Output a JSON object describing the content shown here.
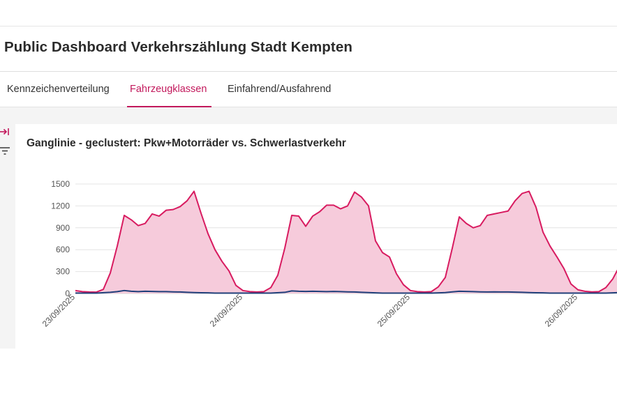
{
  "header": {
    "title": "Public Dashboard Verkehrszählung Stadt Kempten"
  },
  "tabs": [
    {
      "label": "Kennzeichenverteilung",
      "active": false
    },
    {
      "label": "Fahrzeugklassen",
      "active": true
    },
    {
      "label": "Einfahrend/Ausfahrend",
      "active": false
    }
  ],
  "sidebar": {
    "icons": [
      "collapse-sidebar-icon",
      "filter-icon"
    ]
  },
  "colors": {
    "accent": "#c2185b",
    "series_pkw": "#d81b60",
    "series_pkw_fill": "#f6cbdb",
    "series_lkw": "#1f3f7a"
  },
  "card": {
    "title": "Ganglinie - geclustert: Pkw+Motorräder vs. Schwerlastverkehr"
  },
  "chart_data": {
    "type": "area",
    "title": "Ganglinie - geclustert: Pkw+Motorräder vs. Schwerlastverkehr",
    "ylim": [
      0,
      1500
    ],
    "yticks": [
      "1500",
      "1200",
      "900",
      "600",
      "300",
      "0"
    ],
    "xticks": [
      "23/09/2025",
      "24/09/2025",
      "25/09/2025",
      "26/09/2025"
    ],
    "grid": true,
    "series": [
      {
        "values": [
          [
            0,
            40
          ],
          [
            1,
            25
          ],
          [
            2,
            20
          ],
          [
            3,
            18
          ],
          [
            4,
            55
          ],
          [
            5,
            280
          ],
          [
            6,
            650
          ],
          [
            7,
            1070
          ],
          [
            8,
            1010
          ],
          [
            9,
            930
          ],
          [
            10,
            960
          ],
          [
            11,
            1090
          ],
          [
            12,
            1060
          ],
          [
            13,
            1140
          ],
          [
            14,
            1150
          ],
          [
            15,
            1190
          ],
          [
            16,
            1270
          ],
          [
            17,
            1400
          ],
          [
            18,
            1100
          ],
          [
            19,
            820
          ],
          [
            20,
            600
          ],
          [
            21,
            440
          ],
          [
            22,
            310
          ],
          [
            23,
            110
          ],
          [
            24,
            40
          ],
          [
            25,
            25
          ],
          [
            26,
            20
          ],
          [
            27,
            25
          ],
          [
            28,
            80
          ],
          [
            28,
            80
          ],
          [
            29,
            250
          ],
          [
            30,
            620
          ],
          [
            31,
            1070
          ],
          [
            32,
            1060
          ],
          [
            33,
            920
          ],
          [
            34,
            1060
          ],
          [
            35,
            1120
          ],
          [
            36,
            1210
          ],
          [
            37,
            1210
          ],
          [
            38,
            1160
          ],
          [
            39,
            1200
          ],
          [
            40,
            1390
          ],
          [
            41,
            1320
          ],
          [
            42,
            1200
          ],
          [
            43,
            720
          ],
          [
            44,
            560
          ],
          [
            45,
            500
          ],
          [
            46,
            270
          ],
          [
            47,
            120
          ],
          [
            48,
            40
          ],
          [
            49,
            25
          ],
          [
            50,
            20
          ],
          [
            51,
            25
          ],
          [
            52,
            90
          ],
          [
            52,
            90
          ],
          [
            53,
            220
          ],
          [
            54,
            620
          ],
          [
            55,
            1050
          ],
          [
            56,
            960
          ],
          [
            57,
            900
          ],
          [
            58,
            930
          ],
          [
            59,
            1070
          ],
          [
            60,
            1090
          ],
          [
            61,
            1110
          ],
          [
            62,
            1130
          ],
          [
            63,
            1270
          ],
          [
            64,
            1370
          ],
          [
            65,
            1400
          ],
          [
            66,
            1180
          ],
          [
            67,
            840
          ],
          [
            68,
            650
          ],
          [
            69,
            500
          ],
          [
            70,
            340
          ],
          [
            71,
            130
          ],
          [
            72,
            50
          ],
          [
            73,
            30
          ],
          [
            74,
            22
          ],
          [
            75,
            25
          ],
          [
            76,
            80
          ],
          [
            77,
            200
          ],
          [
            78,
            380
          ]
        ]
      },
      {
        "values": [
          [
            0,
            5
          ],
          [
            3,
            5
          ],
          [
            5,
            15
          ],
          [
            6,
            25
          ],
          [
            7,
            40
          ],
          [
            8,
            30
          ],
          [
            9,
            25
          ],
          [
            10,
            30
          ],
          [
            11,
            28
          ],
          [
            12,
            25
          ],
          [
            13,
            25
          ],
          [
            14,
            22
          ],
          [
            15,
            20
          ],
          [
            16,
            15
          ],
          [
            17,
            12
          ],
          [
            18,
            10
          ],
          [
            19,
            8
          ],
          [
            20,
            5
          ],
          [
            21,
            5
          ],
          [
            28,
            5
          ],
          [
            30,
            15
          ],
          [
            31,
            35
          ],
          [
            32,
            30
          ],
          [
            33,
            28
          ],
          [
            34,
            30
          ],
          [
            35,
            28
          ],
          [
            36,
            25
          ],
          [
            37,
            28
          ],
          [
            38,
            25
          ],
          [
            39,
            22
          ],
          [
            40,
            20
          ],
          [
            41,
            15
          ],
          [
            42,
            12
          ],
          [
            43,
            8
          ],
          [
            44,
            5
          ],
          [
            45,
            5
          ],
          [
            51,
            5
          ],
          [
            53,
            12
          ],
          [
            54,
            22
          ],
          [
            55,
            30
          ],
          [
            56,
            28
          ],
          [
            57,
            25
          ],
          [
            58,
            22
          ],
          [
            59,
            20
          ],
          [
            60,
            22
          ],
          [
            61,
            20
          ],
          [
            62,
            20
          ],
          [
            63,
            18
          ],
          [
            64,
            15
          ],
          [
            65,
            12
          ],
          [
            66,
            10
          ],
          [
            67,
            8
          ],
          [
            68,
            5
          ],
          [
            69,
            5
          ],
          [
            76,
            5
          ],
          [
            78,
            12
          ]
        ]
      }
    ]
  }
}
